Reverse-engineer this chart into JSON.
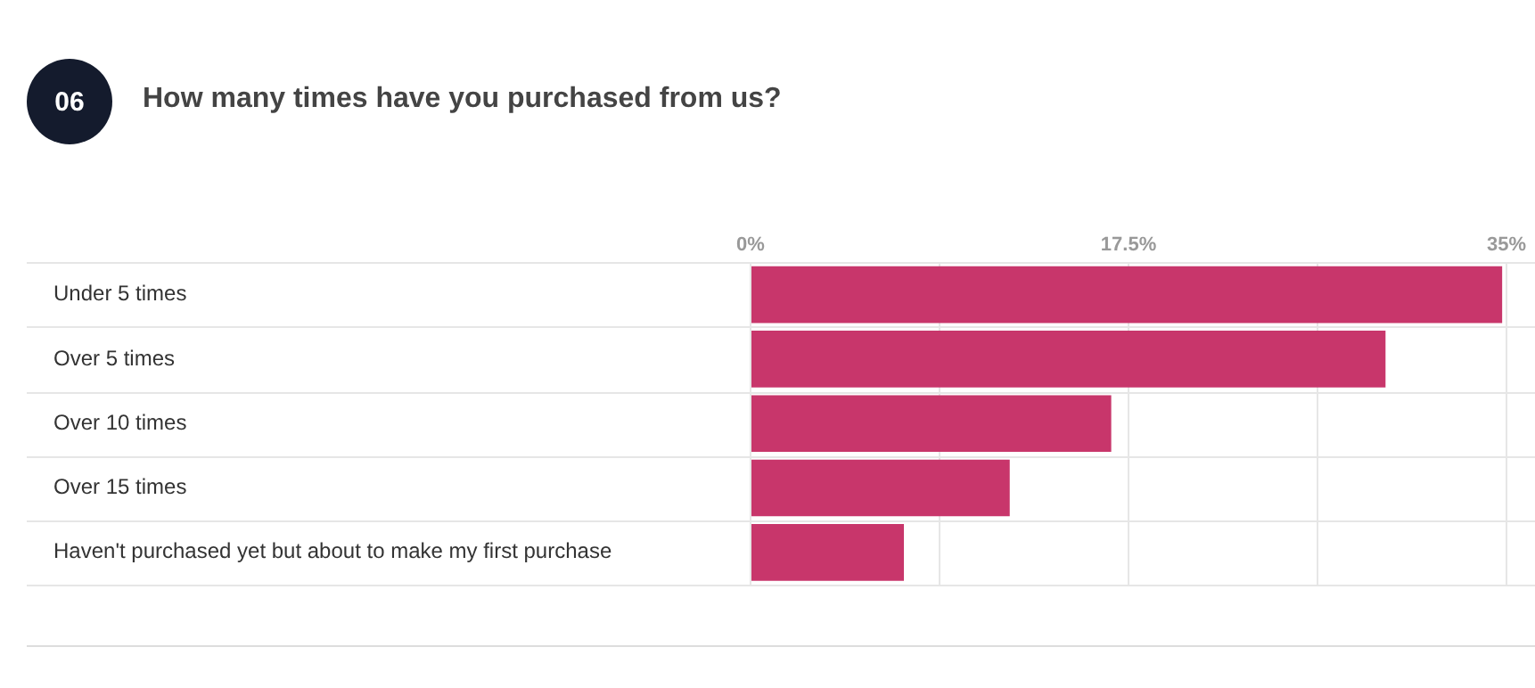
{
  "chart_data": {
    "type": "bar",
    "orientation": "horizontal",
    "title": "How many times have you purchased from us?",
    "annotations": [
      "06"
    ],
    "categories": [
      "Under 5 times",
      "Over 5 times",
      "Over 10 times",
      "Over 15 times",
      "Haven't purchased yet but about to make my first purchase"
    ],
    "values": [
      34.8,
      29.4,
      16.7,
      12.0,
      7.1
    ],
    "color": "#c8366b",
    "xlim": [
      0,
      35
    ],
    "xticks": [
      {
        "value": 0,
        "label": "0%"
      },
      {
        "value": 8.75,
        "label": null
      },
      {
        "value": 17.5,
        "label": "17.5%"
      },
      {
        "value": 26.25,
        "label": null
      },
      {
        "value": 35,
        "label": "35%"
      }
    ],
    "grid": true,
    "legend": false
  }
}
